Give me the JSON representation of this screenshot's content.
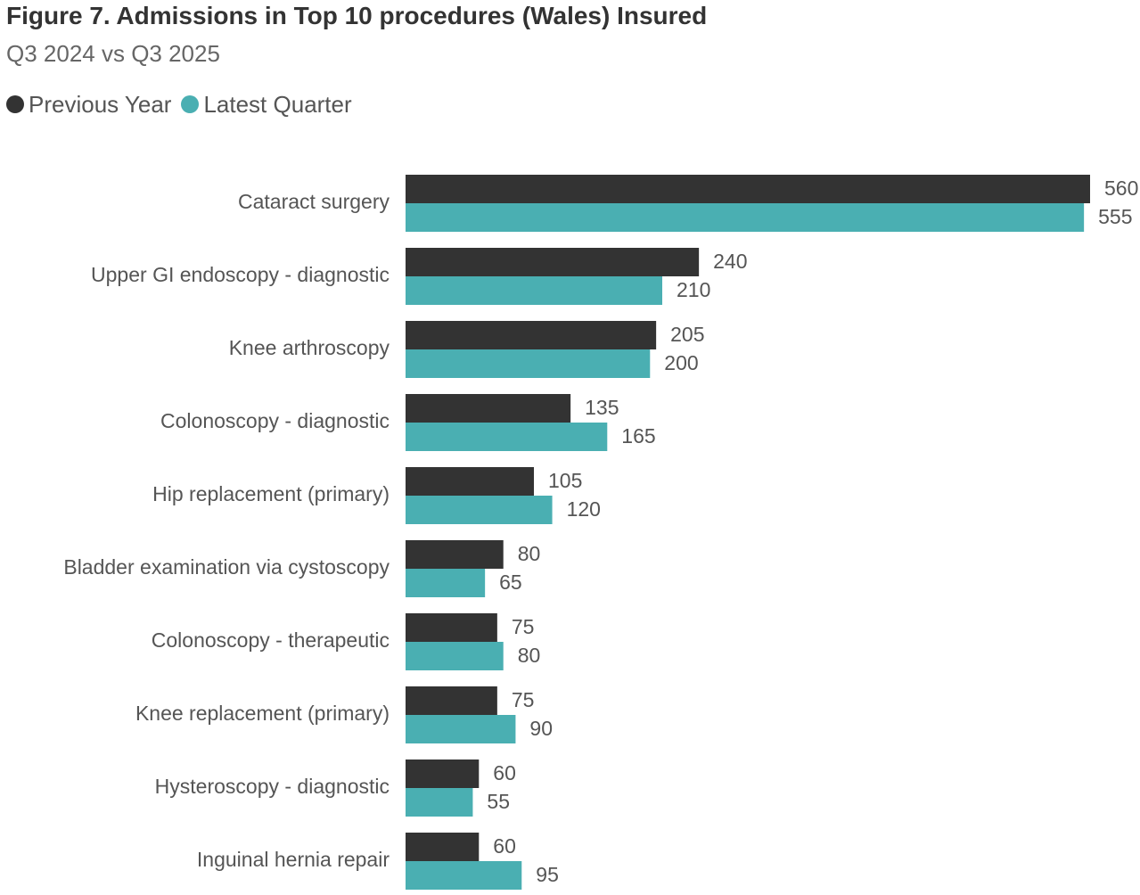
{
  "chart_data": {
    "type": "bar",
    "orientation": "horizontal",
    "title": "Figure 7. Admissions in Top 10 procedures (Wales) Insured",
    "subtitle": "Q3 2024 vs Q3 2025",
    "categories": [
      "Cataract surgery",
      "Upper GI endoscopy - diagnostic",
      "Knee arthroscopy",
      "Colonoscopy - diagnostic",
      "Hip replacement (primary)",
      "Bladder examination via cystoscopy",
      "Colonoscopy - therapeutic",
      "Knee replacement (primary)",
      "Hysteroscopy - diagnostic",
      "Inguinal hernia repair"
    ],
    "series": [
      {
        "name": "Previous Year",
        "color": "#333333",
        "values": [
          560,
          240,
          205,
          135,
          105,
          80,
          75,
          75,
          60,
          60
        ]
      },
      {
        "name": "Latest Quarter",
        "color": "#4aafb2",
        "values": [
          555,
          210,
          200,
          165,
          120,
          65,
          80,
          90,
          55,
          95
        ]
      }
    ],
    "xlim": [
      0,
      560
    ],
    "grid": false,
    "legend_position": "top-left"
  }
}
